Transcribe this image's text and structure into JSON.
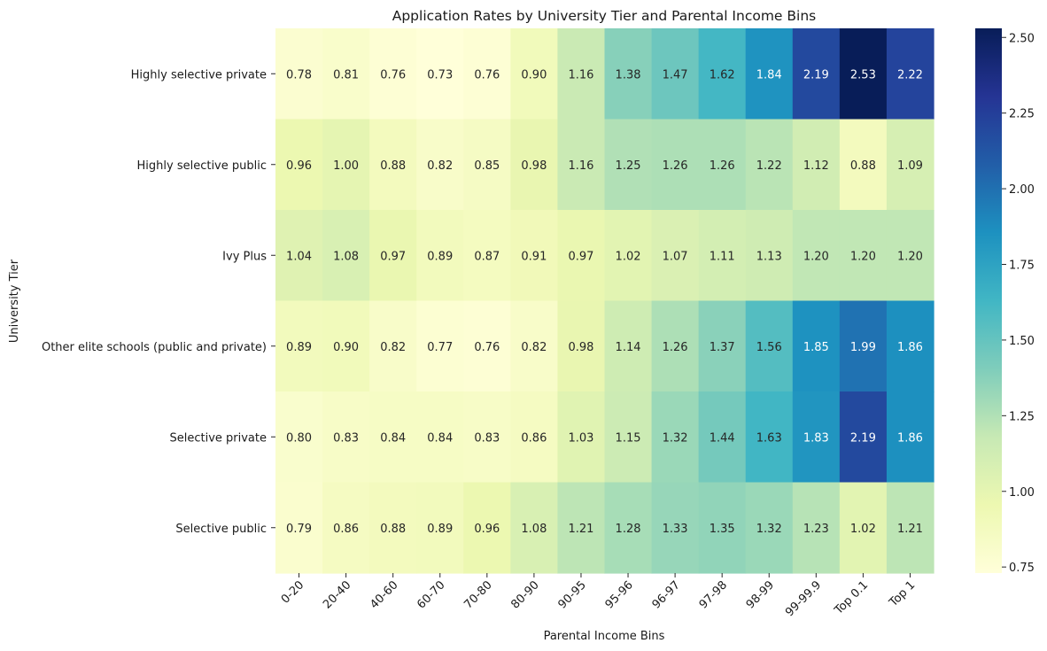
{
  "chart_data": {
    "type": "heatmap",
    "title": "Application Rates by University Tier and Parental Income Bins",
    "xlabel": "Parental Income Bins",
    "ylabel": "University Tier",
    "x_categories": [
      "0-20",
      "20-40",
      "40-60",
      "60-70",
      "70-80",
      "80-90",
      "90-95",
      "95-96",
      "96-97",
      "97-98",
      "98-99",
      "99-99.9",
      "Top 0.1",
      "Top 1"
    ],
    "y_categories": [
      "Highly selective private",
      "Highly selective public",
      "Ivy Plus",
      "Other elite schools (public and private)",
      "Selective private",
      "Selective public"
    ],
    "values": [
      [
        0.78,
        0.81,
        0.76,
        0.73,
        0.76,
        0.9,
        1.16,
        1.38,
        1.47,
        1.62,
        1.84,
        2.19,
        2.53,
        2.22
      ],
      [
        0.96,
        1.0,
        0.88,
        0.82,
        0.85,
        0.98,
        1.16,
        1.25,
        1.26,
        1.26,
        1.22,
        1.12,
        0.88,
        1.09
      ],
      [
        1.04,
        1.08,
        0.97,
        0.89,
        0.87,
        0.91,
        0.97,
        1.02,
        1.07,
        1.11,
        1.13,
        1.2,
        1.2,
        1.2
      ],
      [
        0.89,
        0.9,
        0.82,
        0.77,
        0.76,
        0.82,
        0.98,
        1.14,
        1.26,
        1.37,
        1.56,
        1.85,
        1.99,
        1.86
      ],
      [
        0.8,
        0.83,
        0.84,
        0.84,
        0.83,
        0.86,
        1.03,
        1.15,
        1.32,
        1.44,
        1.63,
        1.83,
        2.19,
        1.86
      ],
      [
        0.79,
        0.86,
        0.88,
        0.89,
        0.96,
        1.08,
        1.21,
        1.28,
        1.33,
        1.35,
        1.32,
        1.23,
        1.02,
        1.21
      ]
    ],
    "value_format": "2 decimals",
    "colormap": "YlGnBu",
    "colorbar": {
      "vmin": 0.73,
      "vmax": 2.53,
      "ticks": [
        0.75,
        1.0,
        1.25,
        1.5,
        1.75,
        2.0,
        2.25,
        2.5
      ],
      "tick_labels": [
        "0.75",
        "1.00",
        "1.25",
        "1.50",
        "1.75",
        "2.00",
        "2.25",
        "2.50"
      ],
      "placement": "right"
    },
    "grid": false
  }
}
